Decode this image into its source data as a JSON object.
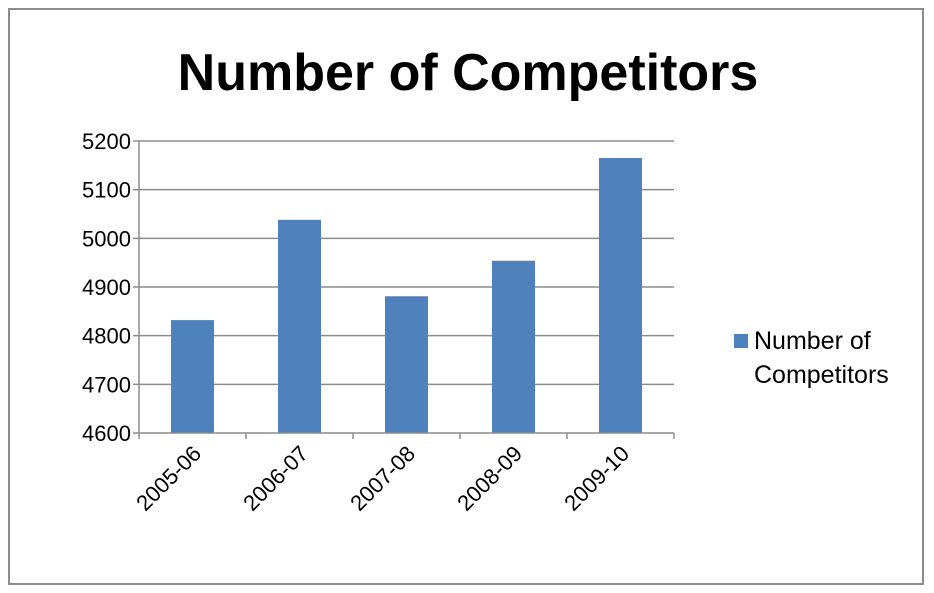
{
  "chart_data": {
    "type": "bar",
    "title": "Number of Competitors",
    "xlabel": "",
    "ylabel": "",
    "categories": [
      "2005-06",
      "2006-07",
      "2007-08",
      "2008-09",
      "2009-10"
    ],
    "series": [
      {
        "name": "Number of Competitors",
        "values": [
          4832,
          5038,
          4881,
          4954,
          5165
        ],
        "color": "#4f81bd"
      }
    ],
    "ylim": [
      4600,
      5200
    ],
    "yticks": [
      4600,
      4700,
      4800,
      4900,
      5000,
      5100,
      5200
    ],
    "grid": true,
    "legend_position": "right",
    "legend_lines": [
      "Number of",
      "Competitors"
    ]
  }
}
